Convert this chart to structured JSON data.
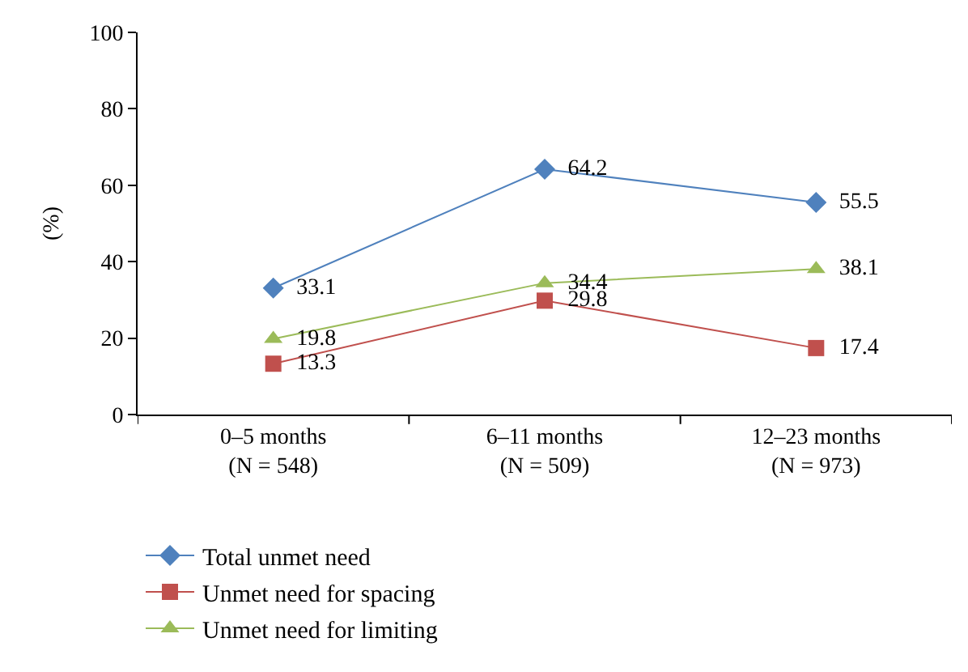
{
  "chart_data": {
    "type": "line",
    "ylabel": "(%)",
    "categories": [
      "0–5 months\n(N = 548)",
      "6–11 months\n(N = 509)",
      "12–23 months\n(N = 973)"
    ],
    "series": [
      {
        "name": "Total unmet need",
        "color": "#4f81bd",
        "marker": "diamond",
        "values": [
          33.1,
          64.2,
          55.5
        ]
      },
      {
        "name": "Unmet need for spacing",
        "color": "#c0504d",
        "marker": "square",
        "values": [
          13.3,
          29.8,
          17.4
        ]
      },
      {
        "name": "Unmet need for limiting",
        "color": "#9bbb59",
        "marker": "triangle",
        "values": [
          19.8,
          34.4,
          38.1
        ]
      }
    ],
    "ylim": [
      0,
      100
    ],
    "yticks": [
      0,
      20,
      40,
      60,
      80,
      100
    ],
    "grid": false,
    "legend": "bottom left",
    "data_labels": true,
    "line_style": "solid"
  }
}
